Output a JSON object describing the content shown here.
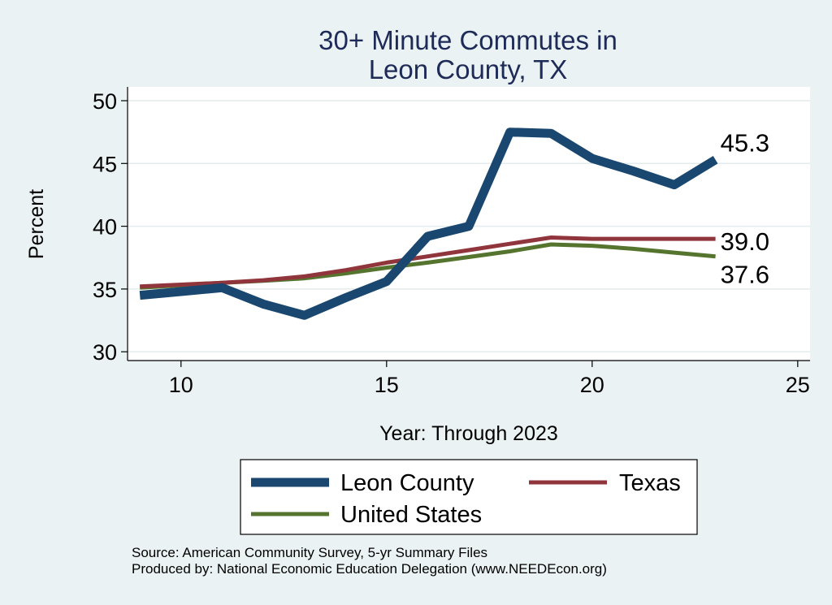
{
  "chart_data": {
    "type": "line",
    "title_lines": [
      "30+ Minute Commutes in",
      "Leon County, TX"
    ],
    "xlabel": "Year: Through 2023",
    "ylabel": "Percent",
    "xlim": [
      8.7,
      25.3
    ],
    "ylim": [
      29.3,
      51.1
    ],
    "xticks": [
      10,
      15,
      20,
      25
    ],
    "yticks": [
      30,
      35,
      40,
      45,
      50
    ],
    "grid": true,
    "legend_position": "bottom",
    "series": [
      {
        "name": "Leon County",
        "color": "#1a476f",
        "x": [
          9,
          10,
          11,
          12,
          13,
          14,
          15,
          16,
          17,
          18,
          19,
          20,
          21,
          22,
          23
        ],
        "y": [
          34.5,
          34.8,
          35.1,
          33.8,
          32.9,
          34.3,
          35.6,
          39.2,
          40.0,
          47.5,
          47.4,
          45.4,
          44.4,
          43.3,
          45.3
        ],
        "end_label": "45.3"
      },
      {
        "name": "Texas",
        "color": "#90353b",
        "x": [
          9,
          10,
          11,
          12,
          13,
          14,
          15,
          16,
          17,
          18,
          19,
          20,
          21,
          22,
          23
        ],
        "y": [
          35.2,
          35.35,
          35.5,
          35.7,
          36.0,
          36.5,
          37.1,
          37.6,
          38.1,
          38.6,
          39.1,
          39.0,
          39.0,
          39.0,
          39.0
        ],
        "end_label": "39.0"
      },
      {
        "name": "United States",
        "color": "#55752f",
        "x": [
          9,
          10,
          11,
          12,
          13,
          14,
          15,
          16,
          17,
          18,
          19,
          20,
          21,
          22,
          23
        ],
        "y": [
          35.1,
          35.3,
          35.5,
          35.65,
          35.85,
          36.25,
          36.7,
          37.1,
          37.55,
          38.0,
          38.55,
          38.45,
          38.2,
          37.9,
          37.6
        ],
        "end_label": "37.6"
      }
    ]
  },
  "footer": {
    "source": "Source: American Community Survey, 5-yr Summary Files",
    "produced": "Produced by: National Economic Education Delegation (www.NEEDEcon.org)"
  }
}
